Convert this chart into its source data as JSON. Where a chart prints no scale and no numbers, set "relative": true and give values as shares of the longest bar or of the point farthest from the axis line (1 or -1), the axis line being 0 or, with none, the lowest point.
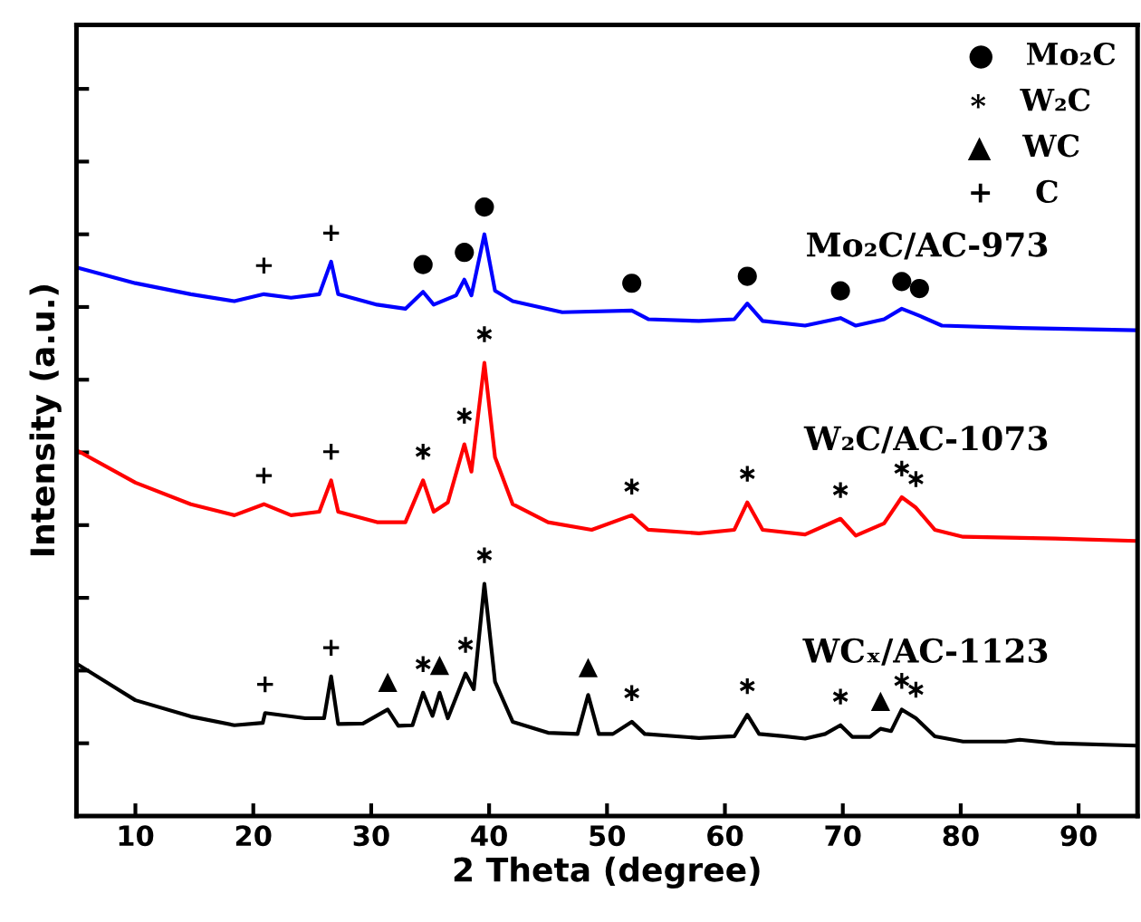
{
  "chart_data": {
    "type": "line",
    "relative": true,
    "xlabel": "2 Theta (degree)",
    "ylabel": "Intensity (a.u.)",
    "xlim": [
      5,
      95
    ],
    "xticks": [
      10,
      20,
      30,
      40,
      50,
      60,
      70,
      80,
      90
    ],
    "tick_labels": "x",
    "grid": false,
    "legend": false,
    "marker": "none",
    "line_style": "solid",
    "series": [
      {
        "name": "Mo₂C/AC-973",
        "color": "#0000ff",
        "x": [
          5,
          10,
          14.7,
          18.4,
          20.9,
          23.2,
          25.6,
          26.6,
          27.2,
          30.5,
          32.9,
          34.4,
          35.3,
          37.2,
          37.9,
          38.5,
          39.6,
          40.5,
          42,
          46.2,
          52.1,
          53.5,
          57.8,
          60.8,
          61.9,
          63.2,
          66.8,
          69.8,
          71.1,
          73.5,
          75,
          76.5,
          78.4,
          85,
          94.7
        ],
        "values": [
          0.943,
          0.916,
          0.897,
          0.885,
          0.897,
          0.891,
          0.897,
          0.953,
          0.897,
          0.879,
          0.872,
          0.901,
          0.879,
          0.895,
          0.922,
          0.895,
          1.0,
          0.903,
          0.885,
          0.866,
          0.869,
          0.854,
          0.851,
          0.854,
          0.881,
          0.851,
          0.843,
          0.856,
          0.843,
          0.854,
          0.872,
          0.86,
          0.843,
          0.839,
          0.835
        ]
      },
      {
        "name": "W₂C/AC-1073",
        "color": "#ff0000",
        "x": [
          5,
          10,
          14.7,
          18.4,
          20.9,
          23.2,
          25.6,
          26.6,
          27.2,
          30.5,
          32.9,
          34.4,
          35.3,
          36.5,
          37.9,
          38.5,
          39.6,
          40.5,
          42,
          45,
          48.7,
          52.1,
          53.5,
          57.8,
          60.8,
          61.9,
          63.2,
          66.8,
          69.8,
          71.1,
          73.5,
          75,
          76.2,
          77.8,
          80.2,
          88,
          94.7
        ],
        "values": [
          0.629,
          0.573,
          0.536,
          0.517,
          0.536,
          0.517,
          0.523,
          0.577,
          0.523,
          0.505,
          0.505,
          0.577,
          0.523,
          0.539,
          0.639,
          0.592,
          0.779,
          0.617,
          0.536,
          0.505,
          0.492,
          0.517,
          0.492,
          0.486,
          0.492,
          0.539,
          0.492,
          0.484,
          0.511,
          0.482,
          0.503,
          0.548,
          0.53,
          0.492,
          0.48,
          0.477,
          0.473
        ]
      },
      {
        "name": "WCₓ/AC-1123",
        "color": "#000000",
        "x": [
          5,
          10,
          14.7,
          18.4,
          20.8,
          21,
          24.4,
          26,
          26.6,
          27.2,
          29.3,
          31.4,
          32.3,
          33.5,
          34.4,
          35.2,
          35.8,
          36.5,
          38,
          38.7,
          39.6,
          40.5,
          42,
          45,
          47.5,
          48.4,
          49.3,
          50.5,
          52.1,
          53.2,
          57.8,
          60.8,
          61.9,
          62.9,
          65,
          66.8,
          68.5,
          69.8,
          70.8,
          72.3,
          73.2,
          74.1,
          75,
          76.2,
          77.8,
          80.2,
          83.8,
          85,
          88,
          94.7
        ],
        "values": [
          0.262,
          0.199,
          0.171,
          0.156,
          0.16,
          0.177,
          0.168,
          0.168,
          0.24,
          0.158,
          0.159,
          0.183,
          0.155,
          0.156,
          0.212,
          0.172,
          0.212,
          0.168,
          0.245,
          0.218,
          0.399,
          0.231,
          0.162,
          0.143,
          0.141,
          0.208,
          0.141,
          0.141,
          0.162,
          0.141,
          0.134,
          0.137,
          0.174,
          0.141,
          0.137,
          0.133,
          0.141,
          0.156,
          0.136,
          0.136,
          0.15,
          0.146,
          0.183,
          0.168,
          0.137,
          0.128,
          0.128,
          0.131,
          0.125,
          0.121
        ]
      }
    ],
    "annotations": [
      "●   Mo₂C",
      "∗   W₂C",
      "▲   WC",
      "+    C",
      {
        "text": "+",
        "x": 20.9,
        "y": 0.897
      },
      {
        "text": "+",
        "x": 26.6,
        "y": 0.953
      },
      {
        "text": "●",
        "x": 34.4,
        "y": 0.901
      },
      {
        "text": "●",
        "x": 37.9,
        "y": 0.922
      },
      {
        "text": "●",
        "x": 39.6,
        "y": 1.0
      },
      {
        "text": "●",
        "x": 52.1,
        "y": 0.869
      },
      {
        "text": "●",
        "x": 61.9,
        "y": 0.881
      },
      {
        "text": "●",
        "x": 69.8,
        "y": 0.856
      },
      {
        "text": "●",
        "x": 75,
        "y": 0.872
      },
      {
        "text": "●",
        "x": 76.5,
        "y": 0.86
      },
      {
        "text": "+",
        "x": 20.9,
        "y": 0.536
      },
      {
        "text": "+",
        "x": 26.6,
        "y": 0.577
      },
      {
        "text": "∗",
        "x": 34.4,
        "y": 0.577
      },
      {
        "text": "∗",
        "x": 37.9,
        "y": 0.639
      },
      {
        "text": "∗",
        "x": 39.6,
        "y": 0.779
      },
      {
        "text": "∗",
        "x": 52.1,
        "y": 0.517
      },
      {
        "text": "∗",
        "x": 61.9,
        "y": 0.539
      },
      {
        "text": "∗",
        "x": 69.8,
        "y": 0.511
      },
      {
        "text": "∗",
        "x": 75,
        "y": 0.548
      },
      {
        "text": "∗",
        "x": 76.2,
        "y": 0.53
      },
      {
        "text": "+",
        "x": 21,
        "y": 0.177
      },
      {
        "text": "+",
        "x": 26.6,
        "y": 0.24
      },
      {
        "text": "▲",
        "x": 31.4,
        "y": 0.183
      },
      {
        "text": "∗",
        "x": 34.4,
        "y": 0.212
      },
      {
        "text": "▲",
        "x": 35.8,
        "y": 0.212
      },
      {
        "text": "∗",
        "x": 38,
        "y": 0.245
      },
      {
        "text": "∗",
        "x": 39.6,
        "y": 0.399
      },
      {
        "text": "▲",
        "x": 48.4,
        "y": 0.208
      },
      {
        "text": "∗",
        "x": 52.1,
        "y": 0.162
      },
      {
        "text": "∗",
        "x": 61.9,
        "y": 0.174
      },
      {
        "text": "∗",
        "x": 69.8,
        "y": 0.156
      },
      {
        "text": "▲",
        "x": 73.2,
        "y": 0.15
      },
      {
        "text": "∗",
        "x": 75,
        "y": 0.183
      },
      {
        "text": "∗",
        "x": 76.2,
        "y": 0.168
      }
    ]
  }
}
